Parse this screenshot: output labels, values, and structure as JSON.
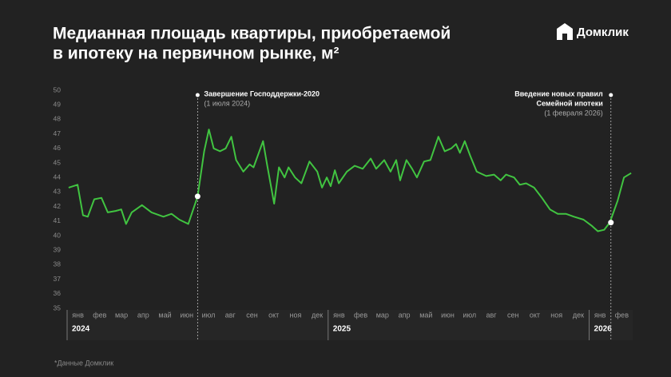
{
  "header": {
    "brand": "Домклик"
  },
  "chart_data": {
    "type": "line",
    "title": [
      "Медианная площадь квартиры, приобретаемой",
      "в ипотеку на первичном рынке, м²"
    ],
    "source": "*Данные Домклик",
    "grid": false,
    "xlim": [
      0,
      26
    ],
    "ylim": [
      35,
      50
    ],
    "yticks": [
      35,
      36,
      37,
      38,
      39,
      40,
      41,
      42,
      43,
      44,
      45,
      46,
      47,
      48,
      49,
      50
    ],
    "xticks": [
      {
        "value": 0.5,
        "label": "янв"
      },
      {
        "value": 1.5,
        "label": "фев"
      },
      {
        "value": 2.5,
        "label": "мар"
      },
      {
        "value": 3.5,
        "label": "апр"
      },
      {
        "value": 4.5,
        "label": "май"
      },
      {
        "value": 5.5,
        "label": "июн"
      },
      {
        "value": 6.5,
        "label": "июл"
      },
      {
        "value": 7.5,
        "label": "авг"
      },
      {
        "value": 8.5,
        "label": "сен"
      },
      {
        "value": 9.5,
        "label": "окт"
      },
      {
        "value": 10.5,
        "label": "ноя"
      },
      {
        "value": 11.5,
        "label": "дек"
      },
      {
        "value": 12.5,
        "label": "янв"
      },
      {
        "value": 13.5,
        "label": "фев"
      },
      {
        "value": 14.5,
        "label": "мар"
      },
      {
        "value": 15.5,
        "label": "апр"
      },
      {
        "value": 16.5,
        "label": "май"
      },
      {
        "value": 17.5,
        "label": "июн"
      },
      {
        "value": 18.5,
        "label": "июл"
      },
      {
        "value": 19.5,
        "label": "авг"
      },
      {
        "value": 20.5,
        "label": "сен"
      },
      {
        "value": 21.5,
        "label": "окт"
      },
      {
        "value": 22.5,
        "label": "ноя"
      },
      {
        "value": 23.5,
        "label": "дек"
      },
      {
        "value": 24.5,
        "label": "янв"
      },
      {
        "value": 25.5,
        "label": "фев"
      }
    ],
    "year_labels": [
      {
        "value": 0,
        "label": "2024"
      },
      {
        "value": 12,
        "label": "2025"
      },
      {
        "value": 24,
        "label": "2026"
      }
    ],
    "series": [
      {
        "color": "#41c441",
        "x": [
          0.07,
          0.48,
          0.73,
          0.95,
          1.25,
          1.58,
          1.87,
          2.23,
          2.49,
          2.71,
          2.97,
          3.44,
          3.88,
          4.43,
          4.8,
          5.16,
          5.57,
          6.0,
          6.3,
          6.52,
          6.74,
          7.03,
          7.29,
          7.55,
          7.77,
          8.1,
          8.39,
          8.57,
          9.01,
          9.19,
          9.52,
          9.74,
          10.0,
          10.18,
          10.48,
          10.77,
          11.14,
          11.5,
          11.72,
          11.94,
          12.12,
          12.31,
          12.49,
          12.86,
          13.22,
          13.59,
          13.96,
          14.21,
          14.58,
          14.87,
          15.13,
          15.31,
          15.6,
          15.86,
          16.08,
          16.41,
          16.7,
          17.07,
          17.36,
          17.66,
          17.88,
          18.06,
          18.28,
          18.53,
          18.83,
          19.27,
          19.63,
          19.93,
          20.18,
          20.55,
          20.81,
          21.1,
          21.47,
          21.83,
          22.2,
          22.56,
          22.93,
          23.3,
          23.74,
          24.1,
          24.4,
          24.69,
          24.95,
          25.31,
          25.6,
          25.93
        ],
        "values": [
          43.3,
          43.5,
          41.4,
          41.3,
          42.5,
          42.6,
          41.6,
          41.7,
          41.8,
          40.8,
          41.6,
          42.1,
          41.6,
          41.3,
          41.5,
          41.1,
          40.8,
          42.7,
          45.8,
          47.3,
          46.0,
          45.8,
          46.0,
          46.8,
          45.2,
          44.4,
          44.9,
          44.7,
          46.5,
          44.9,
          42.2,
          44.7,
          44.0,
          44.7,
          44.0,
          43.6,
          45.1,
          44.4,
          43.3,
          44.0,
          43.4,
          44.5,
          43.6,
          44.4,
          44.8,
          44.6,
          45.3,
          44.6,
          45.2,
          44.4,
          45.2,
          43.8,
          45.2,
          44.6,
          44.0,
          45.1,
          45.2,
          46.8,
          45.8,
          46.0,
          46.3,
          45.7,
          46.5,
          45.5,
          44.4,
          44.1,
          44.2,
          43.8,
          44.2,
          44.0,
          43.5,
          43.6,
          43.3,
          42.6,
          41.8,
          41.5,
          41.5,
          41.3,
          41.1,
          40.7,
          40.3,
          40.4,
          40.9,
          42.4,
          44.0,
          44.3
        ]
      }
    ],
    "annotations": [
      {
        "x": 6,
        "y": 42.7,
        "title": [
          "Завершение Господдержки-2020"
        ],
        "date": "(1 июля 2024)"
      },
      {
        "x": 25,
        "y": 40.9,
        "title": [
          "Введение новых правил",
          "Семейной ипотеки"
        ],
        "date": "(1 февраля 2026)"
      }
    ]
  }
}
